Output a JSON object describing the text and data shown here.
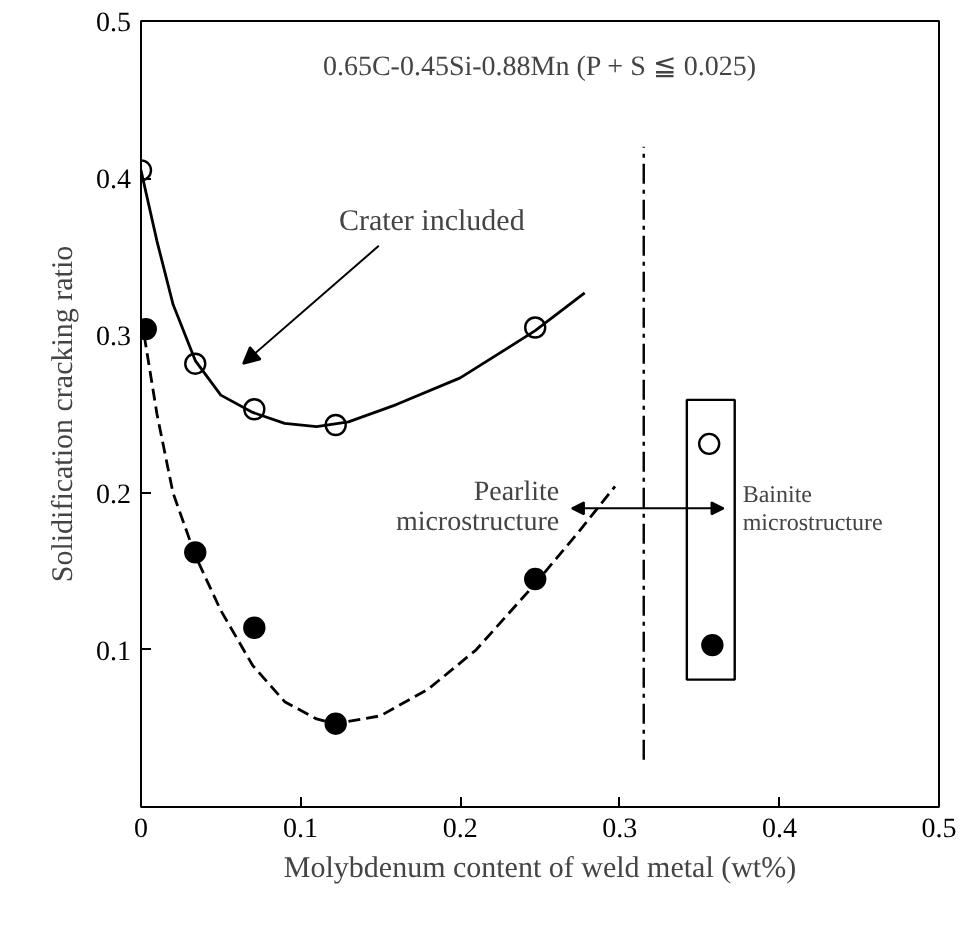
{
  "chart_data": {
    "type": "scatter",
    "title": "0.65C-0.45Si-0.88Mn (P + S ≦ 0.025)",
    "xlabel": "Molybdenum content of weld metal (wt%)",
    "ylabel": "Solidification cracking ratio",
    "xlim": [
      0,
      0.5
    ],
    "ylim": [
      0,
      0.5
    ],
    "xticks": [
      0,
      0.1,
      0.2,
      0.3,
      0.4,
      0.5
    ],
    "yticks": [
      0.1,
      0.2,
      0.3,
      0.4,
      0.5
    ],
    "grid": false,
    "marker": "circle",
    "series": [
      {
        "name": "Crater included",
        "color": "#ffffff",
        "x": [
          0,
          0.034,
          0.071,
          0.122,
          0.247,
          0.356
        ],
        "values": [
          0.405,
          0.282,
          0.253,
          0.243,
          0.305,
          0.231
        ]
      },
      {
        "color": "#000000",
        "x": [
          0.003,
          0.034,
          0.071,
          0.122,
          0.247,
          0.358
        ],
        "values": [
          0.304,
          0.162,
          0.114,
          0.053,
          0.145,
          0.103
        ]
      },
      {
        "type": "line",
        "color": "#000000",
        "marker": "none",
        "line_style": "solid",
        "x": [
          0,
          0.01,
          0.02,
          0.034,
          0.05,
          0.07,
          0.09,
          0.11,
          0.13,
          0.16,
          0.2,
          0.247,
          0.278
        ],
        "values": [
          0.405,
          0.36,
          0.32,
          0.284,
          0.262,
          0.251,
          0.244,
          0.242,
          0.245,
          0.256,
          0.273,
          0.303,
          0.327
        ]
      },
      {
        "type": "line",
        "color": "#000000",
        "marker": "none",
        "line_style": "dashed",
        "x": [
          0.002,
          0.01,
          0.02,
          0.034,
          0.05,
          0.07,
          0.09,
          0.11,
          0.122,
          0.15,
          0.18,
          0.21,
          0.247,
          0.275,
          0.297
        ],
        "values": [
          0.3,
          0.25,
          0.2,
          0.16,
          0.125,
          0.09,
          0.067,
          0.056,
          0.053,
          0.058,
          0.075,
          0.1,
          0.142,
          0.176,
          0.204
        ]
      }
    ],
    "ref_lines": [
      {
        "axis": "x",
        "value": 0.315,
        "line_style": "dashdot",
        "color": "#000000"
      }
    ],
    "annotations": [
      "Pearlite\nmicrostructure",
      "Bainite\nmicrostructure"
    ]
  }
}
